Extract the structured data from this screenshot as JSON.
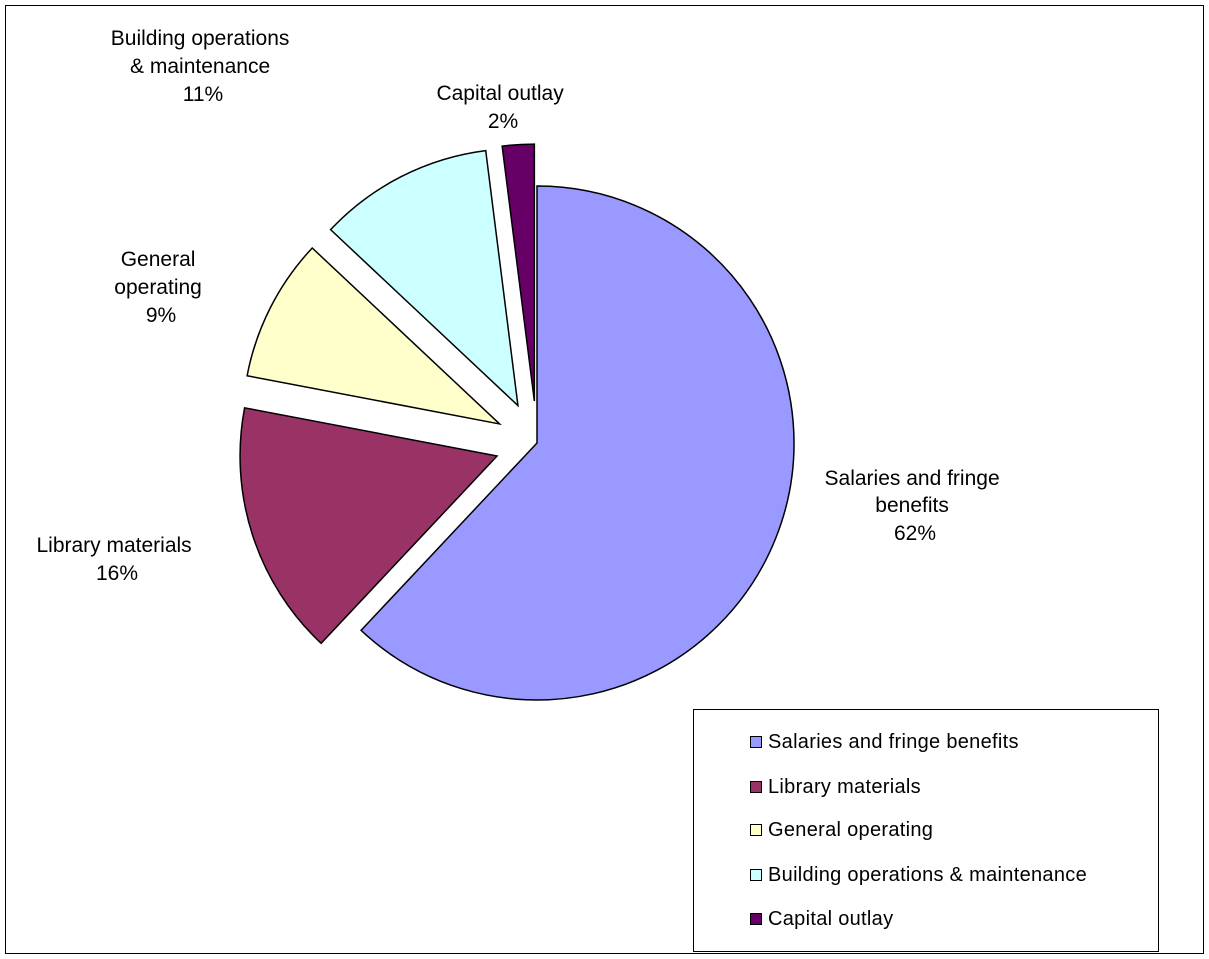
{
  "chart_data": {
    "type": "pie",
    "title": "",
    "slices": [
      {
        "name": "Salaries and fringe benefits",
        "value": 62,
        "label": "62%",
        "color": "#9999ff"
      },
      {
        "name": "Library materials",
        "value": 16,
        "label": "16%",
        "color": "#993366"
      },
      {
        "name": "General operating",
        "value": 9,
        "label": "9%",
        "color": "#ffffcc"
      },
      {
        "name": "Building operations & maintenance",
        "value": 11,
        "label": "11%",
        "color": "#ccffff"
      },
      {
        "name": "Capital outlay",
        "value": 2,
        "label": "2%",
        "color": "#660066"
      }
    ],
    "legend_position": "bottom-right"
  },
  "labels": {
    "salaries": [
      "Salaries and fringe",
      "benefits",
      "62%"
    ],
    "library": [
      "Library materials",
      "16%"
    ],
    "general": [
      "General",
      "operating",
      "9%"
    ],
    "building": [
      "Building operations",
      "& maintenance",
      "11%"
    ],
    "capital": [
      "Capital outlay",
      "2%"
    ]
  }
}
